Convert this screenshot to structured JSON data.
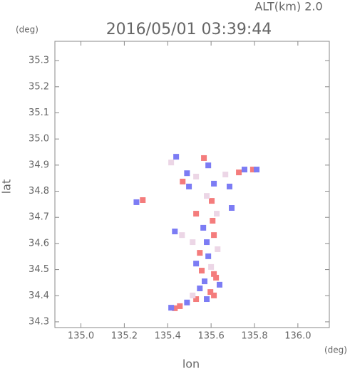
{
  "chart_data": {
    "type": "scatter",
    "title": "2016/05/01 03:39:44",
    "annotation": "ALT(km) 2.0",
    "x_label": "lon",
    "x_unit": "(deg)",
    "y_label": "lat",
    "y_unit": "(deg)",
    "xlim": [
      134.88,
      136.145
    ],
    "ylim": [
      34.278,
      35.374
    ],
    "xticks": [
      {
        "value": 135,
        "label": "135.0"
      },
      135.2,
      135.4,
      135.6,
      135.8,
      {
        "value": 136,
        "label": "136.0"
      }
    ],
    "yticks": [
      34.3,
      34.4,
      34.5,
      34.6,
      34.7,
      34.8,
      34.9,
      {
        "value": 35,
        "label": "35.0"
      },
      35.1,
      35.2,
      35.3
    ],
    "series": [
      {
        "color": "#f47c7c",
        "x": [
          135.285,
          135.469,
          135.567,
          135.603,
          135.728,
          135.793,
          135.531,
          135.607,
          135.613,
          135.548,
          135.557,
          135.613,
          135.623,
          135.597,
          135.531,
          135.613,
          135.433,
          135.456
        ],
        "y": [
          34.766,
          34.837,
          34.927,
          34.763,
          34.872,
          34.883,
          34.714,
          34.687,
          34.632,
          34.564,
          34.496,
          34.483,
          34.469,
          34.414,
          34.387,
          34.401,
          34.352,
          34.36
        ]
      },
      {
        "color": "#7c7cf4",
        "x": [
          135.256,
          135.439,
          135.489,
          135.498,
          135.587,
          135.613,
          135.685,
          135.754,
          135.81,
          135.695,
          135.433,
          135.564,
          135.58,
          135.587,
          135.531,
          135.57,
          135.639,
          135.548,
          135.58,
          135.489,
          135.416
        ],
        "y": [
          34.758,
          34.932,
          34.869,
          34.818,
          34.899,
          34.829,
          34.818,
          34.883,
          34.883,
          34.736,
          34.646,
          34.66,
          34.605,
          34.551,
          34.523,
          34.455,
          34.442,
          34.428,
          34.387,
          34.374,
          34.354
        ]
      },
      {
        "color": "#ecd6e6",
        "x": [
          135.416,
          135.531,
          135.58,
          135.666,
          135.626,
          135.466,
          135.515,
          135.63,
          135.6,
          135.515
        ],
        "y": [
          34.91,
          34.856,
          34.782,
          34.864,
          34.714,
          34.632,
          34.605,
          34.578,
          34.51,
          34.401
        ]
      }
    ]
  }
}
